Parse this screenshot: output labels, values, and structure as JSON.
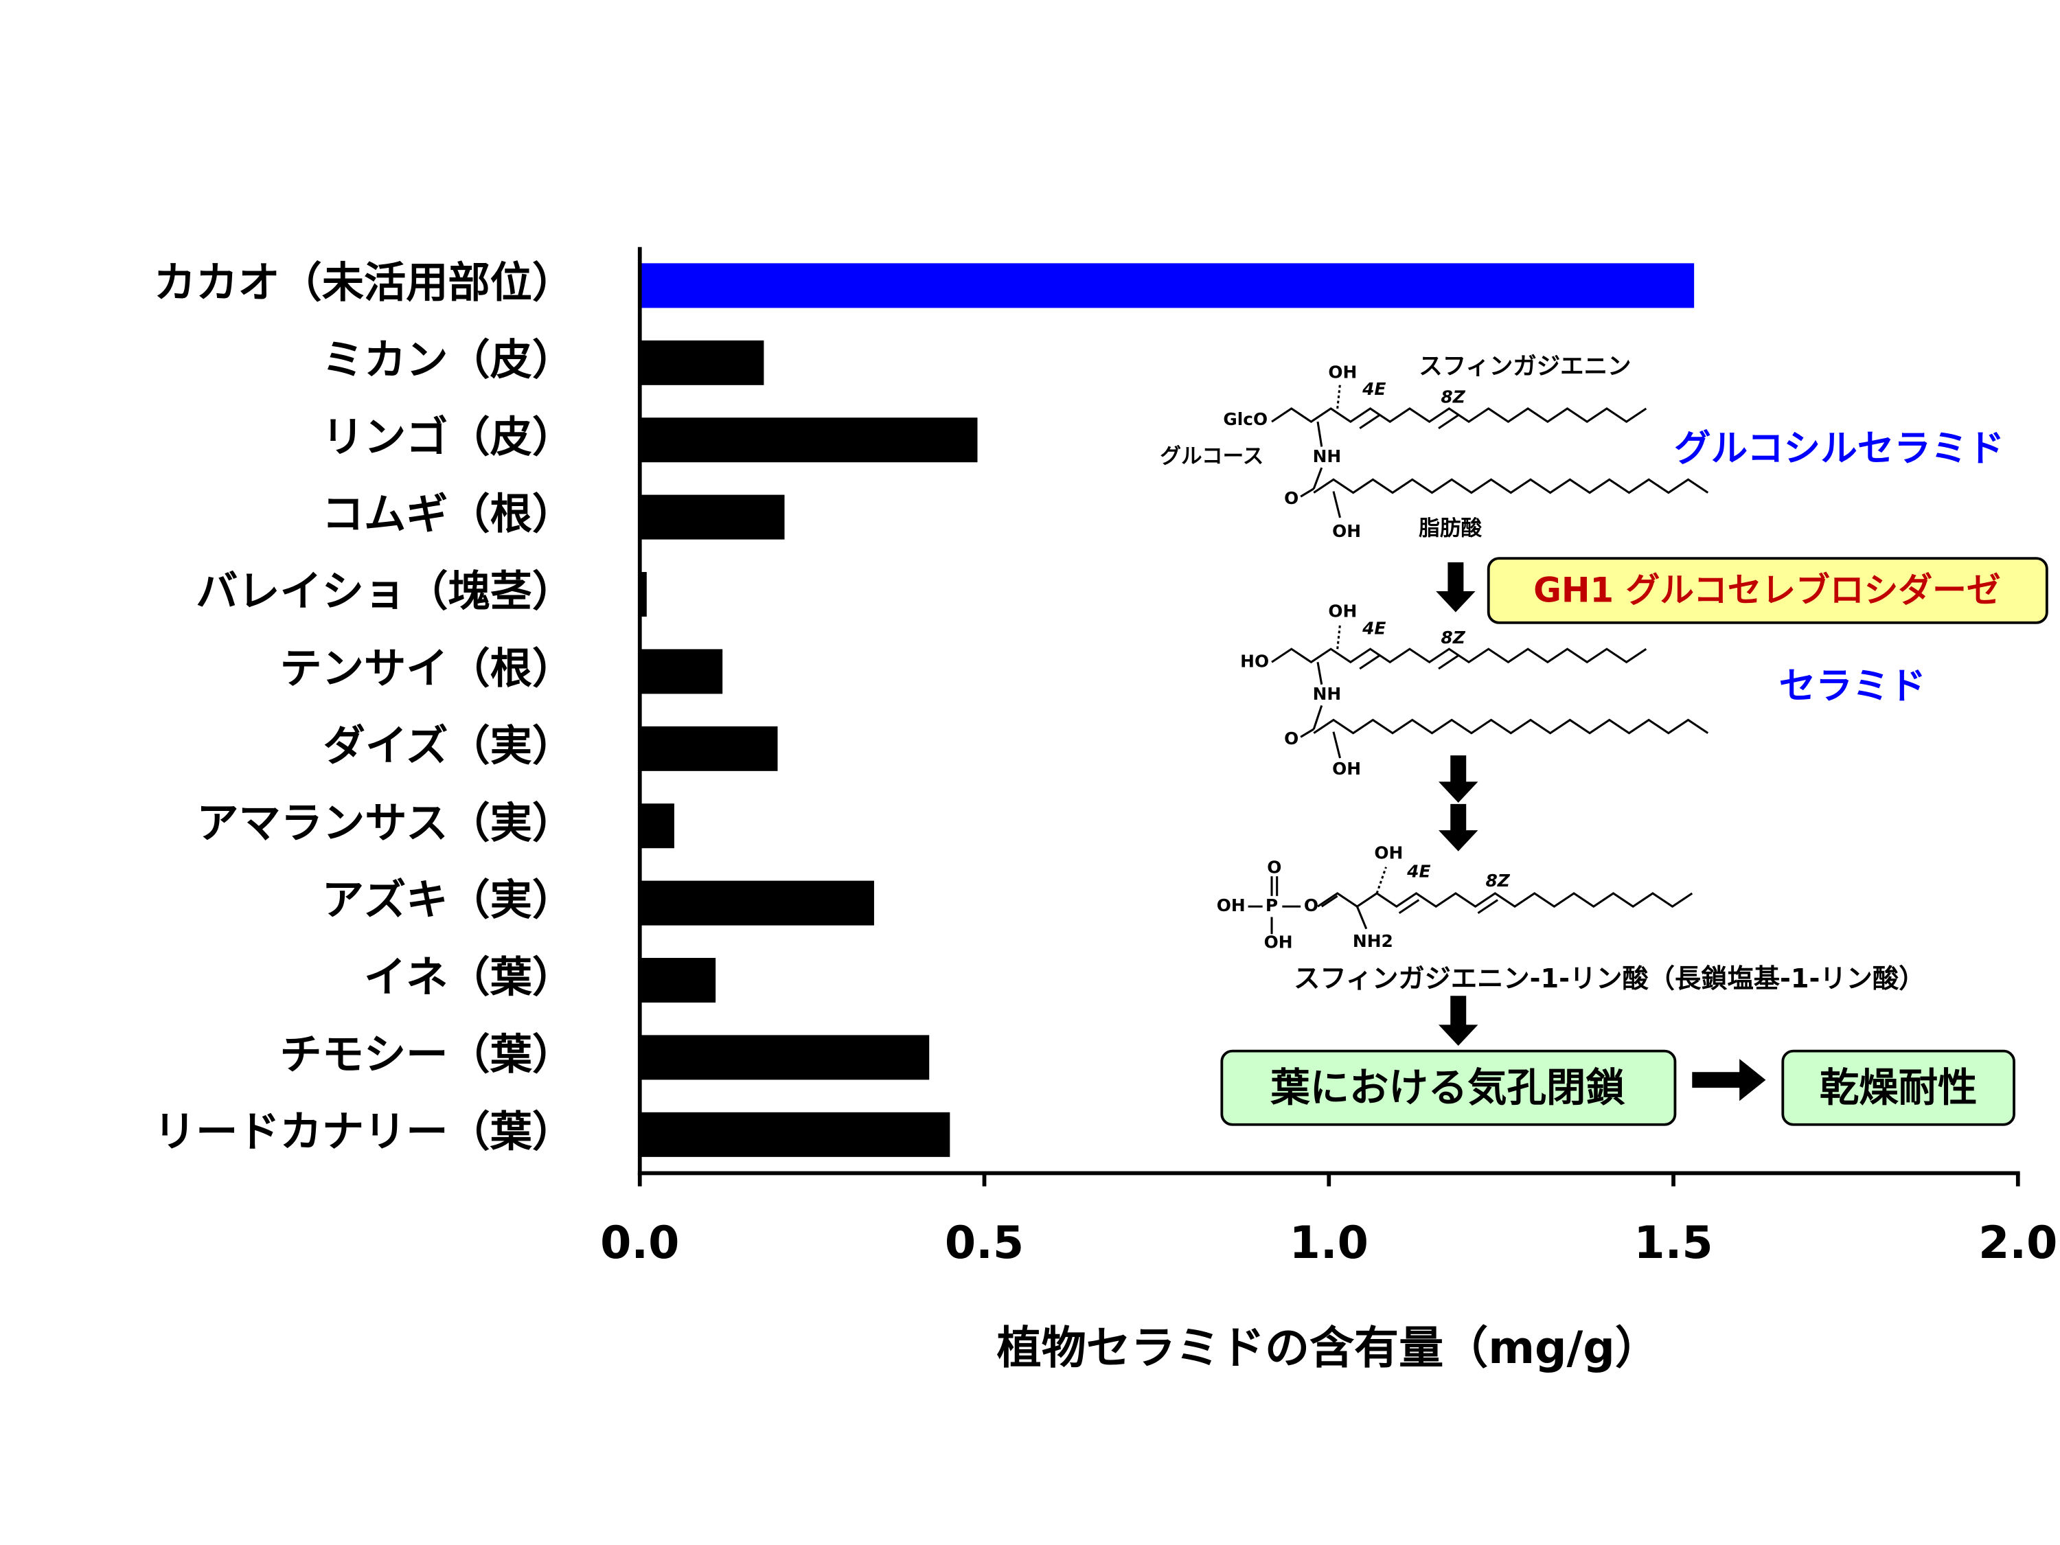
{
  "chart_data": {
    "type": "barh",
    "categories": [
      "カカオ（未活用部位）",
      "ミカン（皮）",
      "リンゴ（皮）",
      "コムギ（根）",
      "バレイショ（塊茎）",
      "テンサイ（根）",
      "ダイズ（実）",
      "アマランサス（実）",
      "アズキ（実）",
      "イネ（葉）",
      "チモシー（葉）",
      "リードカナリー（葉）"
    ],
    "values": [
      1.53,
      0.18,
      0.49,
      0.21,
      0.01,
      0.12,
      0.2,
      0.05,
      0.34,
      0.11,
      0.42,
      0.45
    ],
    "colors": [
      "#0000ff",
      "#000000",
      "#000000",
      "#000000",
      "#000000",
      "#000000",
      "#000000",
      "#000000",
      "#000000",
      "#000000",
      "#000000",
      "#000000"
    ],
    "xlim": [
      0,
      2
    ],
    "xticks": [
      {
        "value": 0,
        "label": "0.0"
      },
      0.5,
      {
        "value": 1,
        "label": "1.0"
      },
      1.5,
      {
        "value": 2,
        "label": "2.0"
      }
    ],
    "x_label": "植物セラミドの含有量（mg/g）",
    "annotations": {
      "glucosylceramide": "グルコシルセラミド",
      "enzyme": "GH1 グルコセレブロシダーゼ",
      "ceramide": "セラミド",
      "product": "スフィンガジエニン-1-リン酸（長鎖塩基-1-リン酸）",
      "effect": "葉における気孔閉鎖",
      "result": "乾燥耐性",
      "structure_texts": [
        "スフィンガジエニン",
        "OH",
        "4E",
        "8Z",
        "GlcO",
        "グルコース",
        "NH",
        "O",
        "OH",
        "脂肪酸",
        "OH",
        "4E",
        "8Z",
        "HO",
        "NH",
        "O",
        "OH",
        "O",
        "OH",
        "P",
        "O",
        "OH",
        "OH",
        "4E",
        "8Z",
        "NH2"
      ]
    }
  }
}
